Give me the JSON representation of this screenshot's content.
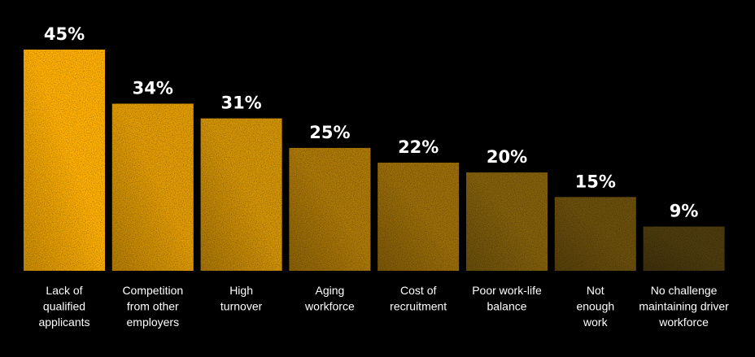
{
  "chart_data": {
    "type": "bar",
    "title": "",
    "xlabel": "",
    "ylabel": "",
    "ylim": [
      0,
      45
    ],
    "grid": false,
    "legend": "none",
    "categories": [
      [
        "Lack of",
        "qualified",
        "applicants"
      ],
      [
        "Competition",
        "from other",
        "employers"
      ],
      [
        "High",
        "turnover"
      ],
      [
        "Aging",
        "workforce"
      ],
      [
        "Cost of",
        "recruitment"
      ],
      [
        "Poor work-life",
        "balance"
      ],
      [
        "Not",
        "enough",
        "work"
      ],
      [
        "No challenge",
        "maintaining driver",
        "workforce"
      ]
    ],
    "values": [
      45,
      34,
      31,
      25,
      22,
      20,
      15,
      9
    ],
    "value_labels": [
      "45%",
      "34%",
      "31%",
      "25%",
      "22%",
      "20%",
      "15%",
      "9%"
    ],
    "colors": [
      "#FFB000",
      "#E39D04",
      "#D49406",
      "#AE7A08",
      "#9C6E09",
      "#83600C",
      "#6B4F0C",
      "#4E3C0E"
    ],
    "background": "#000000",
    "text_color": "#FFFFFF"
  }
}
